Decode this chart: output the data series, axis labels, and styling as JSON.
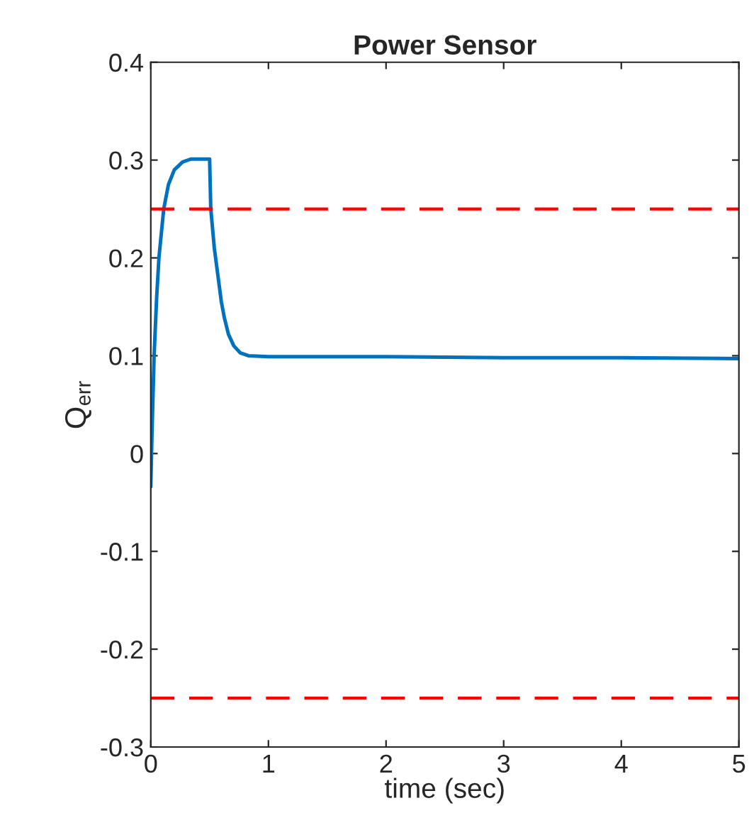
{
  "chart_data": {
    "type": "line",
    "title": "Power Sensor",
    "xlabel": "time (sec)",
    "ylabel": "Q$_{err}$",
    "series": [
      {
        "color": "#0072bd",
        "x": [
          0,
          0.01,
          0.028,
          0.05,
          0.069,
          0.11,
          0.15,
          0.2,
          0.27,
          0.34,
          0.5,
          0.51,
          0.54,
          0.565,
          0.6,
          0.625,
          0.66,
          0.706,
          0.76,
          0.83,
          1,
          2,
          3,
          4,
          5
        ],
        "values": [
          -0.034,
          0.02,
          0.1,
          0.16,
          0.2,
          0.25,
          0.275,
          0.29,
          0.298,
          0.301,
          0.301,
          0.25,
          0.21,
          0.187,
          0.155,
          0.139,
          0.122,
          0.11,
          0.103,
          0.1,
          0.099,
          0.099,
          0.098,
          0.098,
          0.097
        ]
      }
    ],
    "xlim": [
      0,
      5
    ],
    "xticks": [
      0,
      1,
      2,
      3,
      4,
      5
    ],
    "ylim": [
      -0.3,
      0.4
    ],
    "yticks": [
      -0.3,
      -0.2,
      -0.1,
      0,
      0.1,
      0.2,
      0.3,
      0.4
    ],
    "ref_lines": [
      {
        "axis": "y",
        "value": 0.25,
        "color": "#ff0000",
        "line_style": "dashed"
      },
      {
        "axis": "y",
        "value": -0.25,
        "color": "#ff0000",
        "line_style": "dashed"
      }
    ],
    "grid": false,
    "marker": "none",
    "line_style": "solid"
  }
}
